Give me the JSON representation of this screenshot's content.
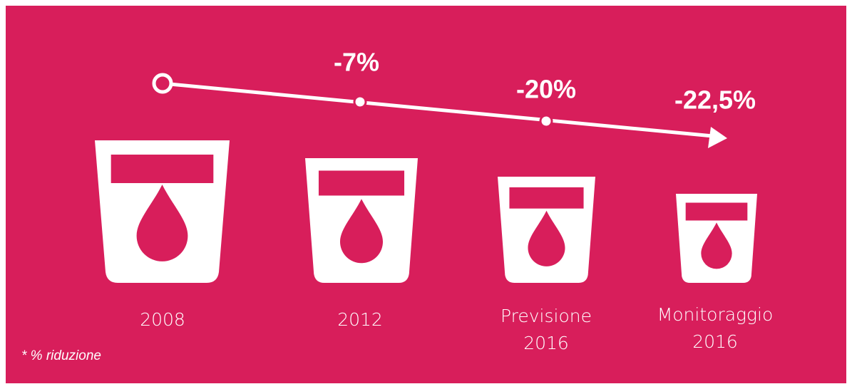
{
  "steps": [
    {
      "label": [
        "2008"
      ]
    },
    {
      "label": [
        "2012"
      ],
      "change": "-7%"
    },
    {
      "label": [
        "Previsione",
        "2016"
      ],
      "change": "-20%"
    },
    {
      "label": [
        "Monitoraggio",
        "2016"
      ],
      "change": "-22,5%"
    }
  ],
  "footnote": "* % riduzione"
}
